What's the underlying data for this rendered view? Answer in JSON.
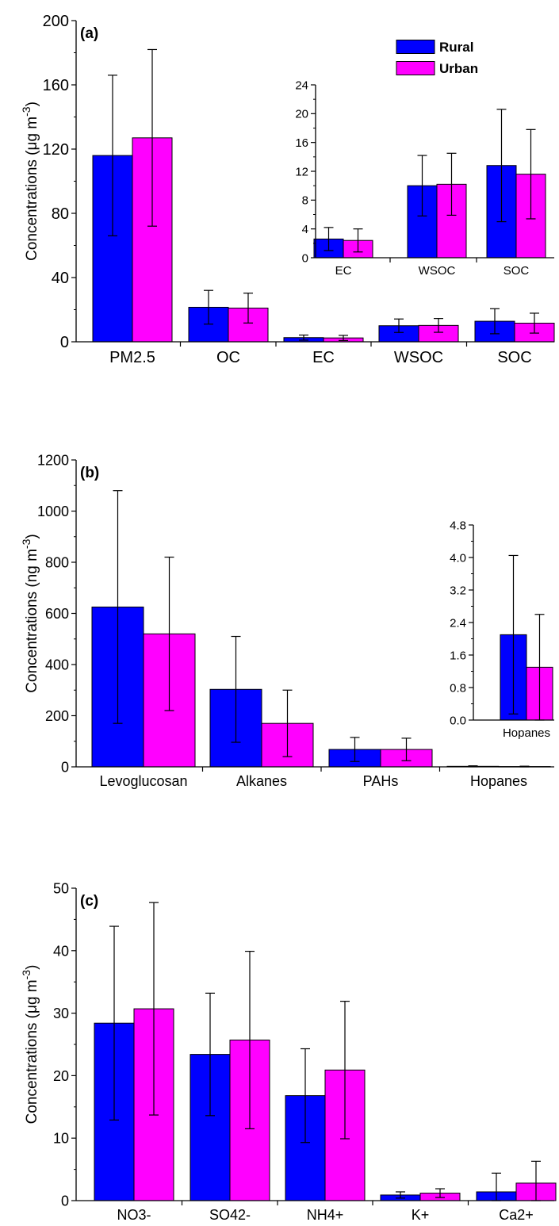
{
  "chart_data": [
    {
      "panel_label": "(a)",
      "type": "bar",
      "ylabel": "Concentrations (μg m",
      "ylabel_sup": "-3",
      "ylabel_end": ")",
      "ylim": [
        0,
        200
      ],
      "yticks": [
        0,
        40,
        80,
        120,
        160,
        200
      ],
      "categories": [
        "PM2.5",
        "OC",
        "EC",
        "WSOC",
        "SOC"
      ],
      "series": [
        {
          "name": "Rural",
          "color": "#0000ff",
          "values": [
            116,
            21.5,
            2.6,
            10.0,
            12.8
          ],
          "errors": [
            50,
            10.5,
            1.6,
            4.2,
            7.8
          ]
        },
        {
          "name": "Urban",
          "color": "#ff00ff",
          "values": [
            127,
            21.0,
            2.4,
            10.2,
            11.6
          ],
          "errors": [
            55,
            9.3,
            1.6,
            4.3,
            6.2
          ]
        }
      ],
      "legend": {
        "position": "top-right",
        "entries": [
          "Rural",
          "Urban"
        ]
      },
      "inset": {
        "type": "bar",
        "ylim": [
          0,
          24
        ],
        "yticks": [
          0,
          4,
          8,
          12,
          16,
          20,
          24
        ],
        "categories": [
          "EC",
          "WSOC",
          "SOC"
        ],
        "series": [
          {
            "name": "Rural",
            "values": [
              2.6,
              10.0,
              12.8
            ],
            "errors": [
              1.6,
              4.2,
              7.8
            ]
          },
          {
            "name": "Urban",
            "values": [
              2.4,
              10.2,
              11.6
            ],
            "errors": [
              1.6,
              4.3,
              6.2
            ]
          }
        ]
      }
    },
    {
      "panel_label": "(b)",
      "type": "bar",
      "ylabel": "Concentrations (ng m",
      "ylabel_sup": "-3",
      "ylabel_end": ")",
      "ylim": [
        0,
        1200
      ],
      "yticks": [
        0,
        200,
        400,
        600,
        800,
        1000,
        1200
      ],
      "categories": [
        "Levoglucosan",
        "Alkanes",
        "PAHs",
        "Hopanes"
      ],
      "series": [
        {
          "name": "Rural",
          "color": "#0000ff",
          "values": [
            625,
            303,
            68,
            2.1
          ],
          "errors": [
            455,
            207,
            47,
            1.9
          ]
        },
        {
          "name": "Urban",
          "color": "#ff00ff",
          "values": [
            520,
            170,
            68,
            1.3
          ],
          "errors": [
            300,
            130,
            44,
            1.3
          ]
        }
      ],
      "inset": {
        "type": "bar",
        "ylim": [
          0,
          4.8
        ],
        "yticks": [
          "0.0",
          "0.8",
          "1.6",
          "2.4",
          "3.2",
          "4.0",
          "4.8"
        ],
        "categories": [
          "Hopanes"
        ],
        "series": [
          {
            "name": "Rural",
            "values": [
              2.1
            ],
            "errors": [
              1.95
            ]
          },
          {
            "name": "Urban",
            "values": [
              1.3
            ],
            "errors": [
              1.3
            ]
          }
        ]
      }
    },
    {
      "panel_label": "(c)",
      "type": "bar",
      "ylabel": "Concentrations (μg m",
      "ylabel_sup": "-3",
      "ylabel_end": ")",
      "ylim": [
        0,
        50
      ],
      "yticks": [
        0,
        10,
        20,
        30,
        40,
        50
      ],
      "categories": [
        "NO3-",
        "SO42-",
        "NH4+",
        "K+",
        "Ca2+"
      ],
      "series": [
        {
          "name": "Rural",
          "color": "#0000ff",
          "values": [
            28.4,
            23.4,
            16.8,
            0.9,
            1.4
          ],
          "errors": [
            15.5,
            9.8,
            7.5,
            0.5,
            3.0
          ]
        },
        {
          "name": "Urban",
          "color": "#ff00ff",
          "values": [
            30.7,
            25.7,
            20.9,
            1.2,
            2.8
          ],
          "errors": [
            17.0,
            14.2,
            11.0,
            0.7,
            3.5
          ]
        }
      ]
    }
  ]
}
